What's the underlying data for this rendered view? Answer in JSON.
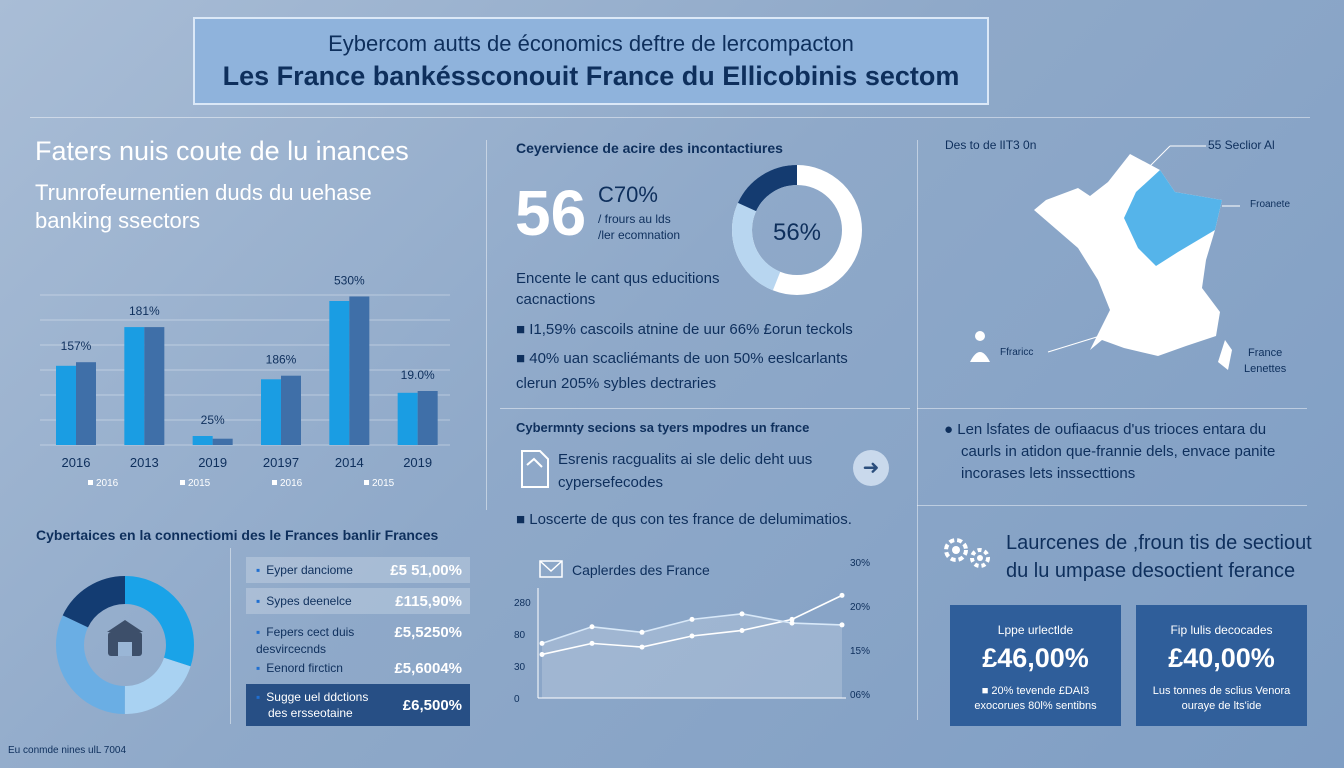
{
  "header": {
    "line1": "Eybercom autts de économics deftre de lercompacton",
    "line2": "Les France bankéssconouit France du Ellicobinis sectom"
  },
  "left": {
    "title": "Faters nuis coute de lu inances",
    "subtitle_1": "Trunrofeurnentien duds du uehase",
    "subtitle_2": "banking ssectors"
  },
  "chart_data": {
    "type": "bar",
    "categories": [
      "2016",
      "2013",
      "2019",
      "20197",
      "2014",
      "2019"
    ],
    "data_labels": [
      "157%",
      "181%",
      "25%",
      "186%",
      "530%",
      "19.0%"
    ],
    "series": [
      {
        "values": [
          88,
          131,
          10,
          73,
          160,
          58
        ]
      },
      {
        "values": [
          92,
          131,
          7,
          77,
          165,
          60
        ]
      }
    ],
    "legend": [
      "2016",
      "2015",
      "2016",
      "2015"
    ],
    "ylim": [
      0,
      200
    ],
    "grid": true
  },
  "center_top": {
    "heading": "Ceyervience de acire des incontactiures",
    "big_number": "56",
    "side_percent": "C70%",
    "side_line1": "/ frours au lds",
    "side_line2": "/ler ecomnation",
    "donut_label": "56%",
    "donut_value": 56,
    "text_line1": "Encente le cant qus educitions",
    "text_line2": "cacnactions",
    "bullet1": "I1,59% cascoils atnine de uur 66% £orun teckols",
    "bullet2": "40% uan scacliémants de uon 50% eeslcarlants",
    "bullet2b": "clerun 205% sybles dectraries"
  },
  "map": {
    "title": "Des to de lIT3 0n",
    "label_top": "55 Seclior Al",
    "label_mid": "Froanete",
    "label_left": "Ffraricc",
    "label_right_1": "France",
    "label_right_2": "Lenettes",
    "colors": {
      "land": "#ffffff",
      "highlight": "#55b4ea"
    }
  },
  "middle": {
    "heading": "Cybermnty secions sa tyers mpodres un france",
    "doc_line1": "Esrenis racgualits ai sle delic deht uus",
    "doc_line2": "cypersefecodes",
    "bullet": "Loscerte de qus con tes france de delumimatios."
  },
  "line_chart": {
    "legend": "Caplerdes des France",
    "y_left": [
      "280",
      "80",
      "30",
      "0"
    ],
    "y_right": [
      "30%",
      "20%",
      "15%",
      "06%"
    ],
    "series": [
      {
        "values": [
          58,
          70,
          66,
          78,
          84,
          96,
          122
        ]
      },
      {
        "values": [
          70,
          88,
          82,
          96,
          102,
          92,
          90
        ]
      }
    ]
  },
  "right": {
    "bullet_line1": "Len lsfates de oufiaacus d'us trioces entara du",
    "bullet_line2": "caurls in atidon que-frannie dels, envace panite",
    "bullet_line3": "incorases lets inssecttions",
    "gears_line1": "Laurcenes de ,froun tis de sectiout",
    "gears_line2": "du lu umpase desoctient ferance",
    "card1": {
      "label": "Lppe urlectlde",
      "value": "£46,00%",
      "desc1": "20% tevende £DAI3",
      "desc2": "exocorues 80l% sentibns"
    },
    "card2": {
      "label": "Fip lulis decocades",
      "value": "£40,00%",
      "desc1": "Lus tonnes de sclius Venora",
      "desc2": "ouraye de lts'ide"
    }
  },
  "bottom_left": {
    "heading": "Cybertaices en la connectiomi des le Frances banlir Frances",
    "rows": [
      {
        "label": "Eyper danciome",
        "value": "£5 51,00%"
      },
      {
        "label": "Sypes deenelce",
        "value": "£115,90%"
      },
      {
        "label": "Fepers cect duis",
        "value": "£5,5250%"
      },
      {
        "label": "desvircecnds",
        "value": ""
      },
      {
        "label": "Eenord fircticn",
        "value": "£5,6004%"
      },
      {
        "label": "Sugge uel ddctions",
        "value": "£6,500%"
      },
      {
        "label": "des ersseotaine",
        "value": ""
      }
    ],
    "donut_segments": [
      30,
      20,
      32,
      18
    ]
  },
  "footer": {
    "note": "Eu conmde nines ulL 7004"
  }
}
